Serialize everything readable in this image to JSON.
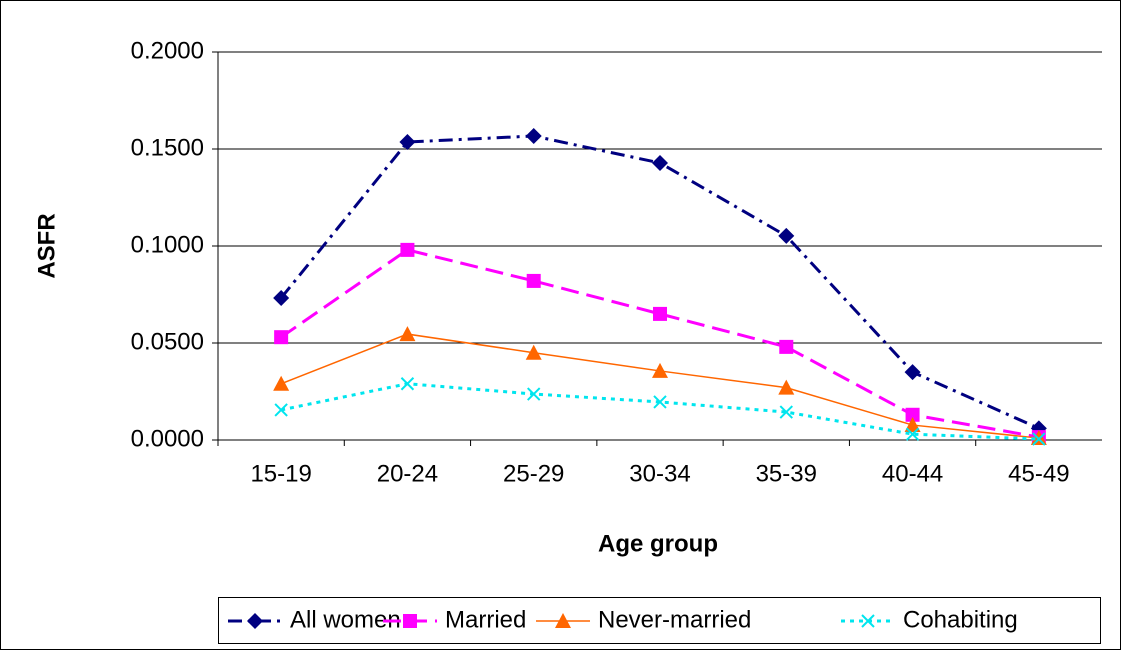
{
  "chart_data": {
    "type": "line",
    "x_label": "Age group",
    "y_label": "ASFR",
    "categories": [
      "15-19",
      "20-24",
      "25-29",
      "30-34",
      "35-39",
      "40-44",
      "45-49"
    ],
    "ylim": [
      0,
      0.2
    ],
    "yticks": [
      {
        "value": 0,
        "label": "0.0000"
      },
      {
        "value": 0.05,
        "label": "0.0500"
      },
      {
        "value": 0.1,
        "label": "0.1000"
      },
      {
        "value": 0.15,
        "label": "0.1500"
      },
      {
        "value": 0.2,
        "label": "0.2000"
      }
    ],
    "grid": true,
    "legend": "bottom",
    "series": [
      {
        "name": "All women",
        "color": "#000080",
        "marker": "diamond",
        "dash": "dash-dot",
        "values": [
          0.0732,
          0.1536,
          0.1567,
          0.1428,
          0.1052,
          0.035,
          0.006
        ]
      },
      {
        "name": "Married",
        "color": "#ff00ff",
        "marker": "square",
        "dash": "dash",
        "values": [
          0.053,
          0.098,
          0.082,
          0.065,
          0.048,
          0.013,
          0.0015
        ]
      },
      {
        "name": "Never-married",
        "color": "#ff6600",
        "marker": "triangle",
        "dash": "solid",
        "values": [
          0.029,
          0.0546,
          0.045,
          0.0356,
          0.027,
          0.0077,
          0.001
        ]
      },
      {
        "name": "Cohabiting",
        "color": "#00e5ee",
        "marker": "x",
        "dash": "dot",
        "values": [
          0.0155,
          0.029,
          0.0237,
          0.0196,
          0.0144,
          0.003,
          0.0005
        ]
      }
    ]
  }
}
